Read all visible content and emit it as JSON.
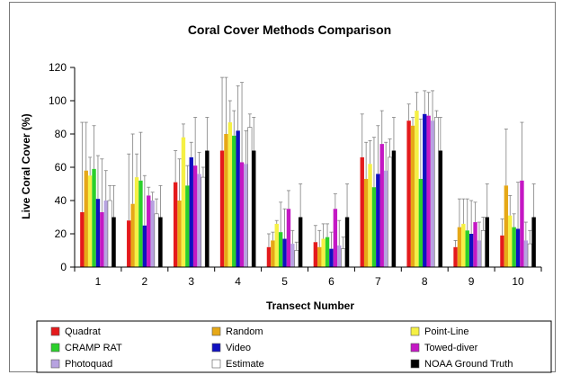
{
  "chart_data": {
    "type": "bar",
    "title": "Coral Cover Methods Comparison",
    "xlabel": "Transect Number",
    "ylabel": "Live Coral Cover (%)",
    "ylim": [
      0,
      120
    ],
    "yticks": [
      0,
      20,
      40,
      60,
      80,
      100,
      120
    ],
    "categories": [
      "1",
      "2",
      "3",
      "4",
      "5",
      "6",
      "7",
      "8",
      "9",
      "10"
    ],
    "legend_position": "bottom",
    "grid": false,
    "error_bars": true,
    "series": [
      {
        "name": "Quadrat",
        "color": "#e41a1c",
        "values": [
          33,
          28,
          51,
          70,
          12,
          15,
          66,
          88,
          12,
          19
        ],
        "errors": [
          54,
          40,
          19,
          44,
          8,
          10,
          26,
          10,
          4,
          10
        ]
      },
      {
        "name": "Random",
        "color": "#e6a817",
        "values": [
          58,
          38,
          40,
          80,
          16,
          12,
          53,
          85,
          24,
          49
        ],
        "errors": [
          29,
          42,
          25,
          34,
          5,
          10,
          22,
          5,
          17,
          34
        ]
      },
      {
        "name": "Point-Line",
        "color": "#f5f044",
        "values": [
          55,
          54,
          78,
          87,
          26,
          17,
          62,
          94,
          26,
          31
        ],
        "errors": [
          11,
          14,
          8,
          13,
          2,
          9,
          14,
          11,
          15,
          12
        ]
      },
      {
        "name": "CRAMP RAT",
        "color": "#2bd02b",
        "values": [
          59,
          52,
          49,
          79,
          21,
          18,
          48,
          53,
          22,
          24
        ],
        "errors": [
          26,
          29,
          12,
          15,
          18,
          8,
          30,
          36,
          19,
          8
        ]
      },
      {
        "name": "Video",
        "color": "#1010c0",
        "values": [
          41,
          25,
          66,
          82,
          17,
          11,
          56,
          92,
          20,
          23
        ],
        "errors": [
          26,
          30,
          9,
          27,
          18,
          10,
          29,
          14,
          20,
          28
        ]
      },
      {
        "name": "Towed-diver",
        "color": "#c418c4",
        "values": [
          33,
          43,
          61,
          63,
          35,
          35,
          74,
          91,
          27,
          52
        ],
        "errors": [
          32,
          5,
          29,
          48,
          11,
          9,
          20,
          14,
          12,
          35
        ]
      },
      {
        "name": "Photoquad",
        "color": "#b7a3e0",
        "values": [
          40,
          40,
          56,
          62,
          14,
          13,
          58,
          88,
          16,
          16
        ],
        "errors": [
          18,
          5,
          13,
          20,
          8,
          15,
          17,
          18,
          11,
          11
        ]
      },
      {
        "name": "Estimate",
        "color": "#ffffff",
        "values": [
          40,
          32,
          54,
          84,
          10,
          11,
          66,
          90,
          22,
          14
        ],
        "errors": [
          9,
          9,
          6,
          8,
          5,
          7,
          11,
          4,
          8,
          8
        ]
      },
      {
        "name": "NOAA Ground Truth",
        "color": "#000000",
        "values": [
          30,
          30,
          70,
          70,
          30,
          30,
          70,
          70,
          30,
          30
        ],
        "errors": [
          19,
          19,
          20,
          20,
          20,
          20,
          20,
          20,
          20,
          20
        ]
      }
    ]
  }
}
